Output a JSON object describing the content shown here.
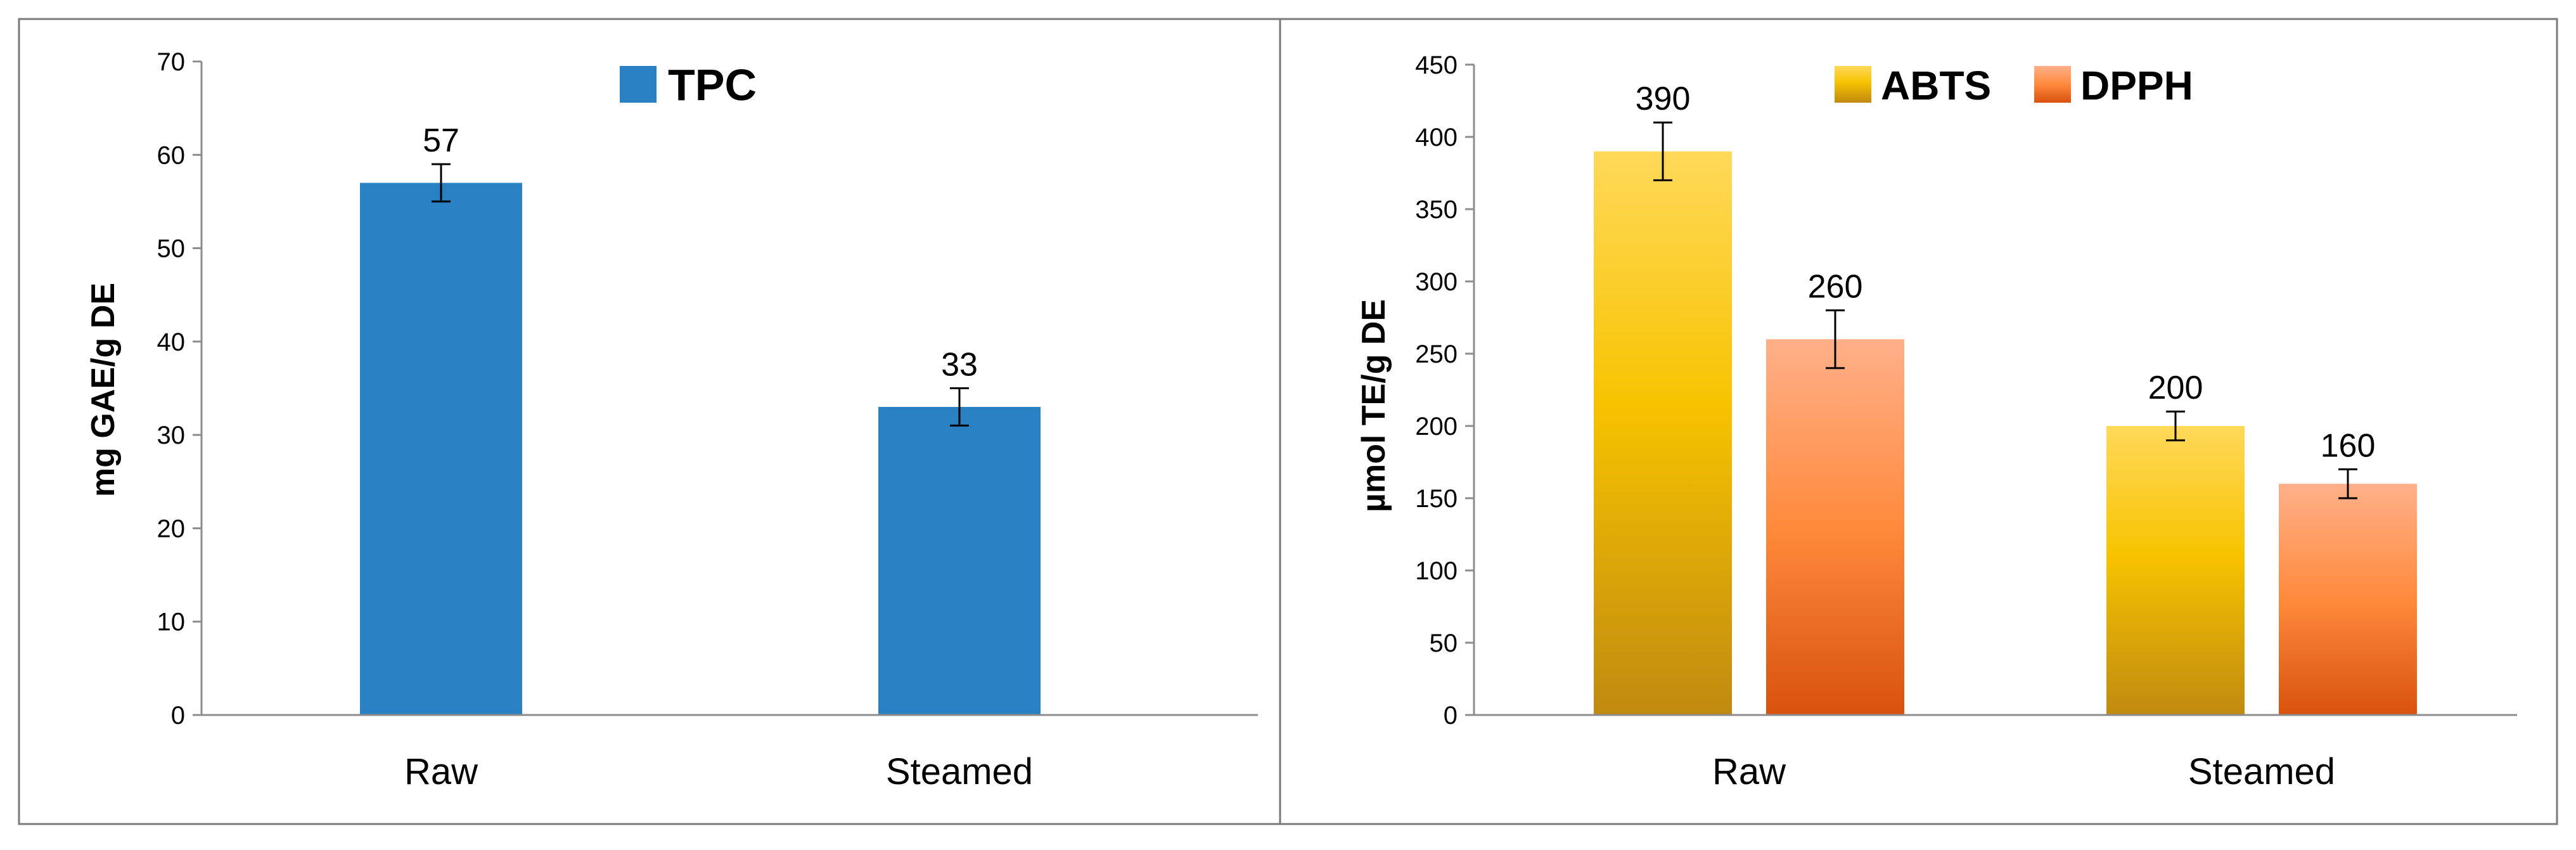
{
  "colors": {
    "tpc": "#2980c3",
    "abts_top": "#ffd95a",
    "abts_mid": "#f7c300",
    "abts_bottom": "#c08a10",
    "dpph_top": "#ffb08a",
    "dpph_mid": "#ff8a3c",
    "dpph_bottom": "#d8520e"
  },
  "chart_data": [
    {
      "type": "bar",
      "categories": [
        "Raw",
        "Steamed"
      ],
      "series": [
        {
          "name": "TPC",
          "values": [
            57,
            33
          ],
          "errors": [
            2,
            2
          ]
        }
      ],
      "data_labels": [
        "57",
        "33"
      ],
      "title": "",
      "xlabel": "",
      "ylabel": "mg GAE/g DE",
      "ylim": [
        0,
        70
      ],
      "yticks": [
        "0",
        "10",
        "20",
        "30",
        "40",
        "50",
        "60",
        "70"
      ],
      "grid": false,
      "legend_position": "top-right"
    },
    {
      "type": "bar",
      "categories": [
        "Raw",
        "Steamed"
      ],
      "series": [
        {
          "name": "ABTS",
          "values": [
            390,
            200
          ],
          "errors": [
            20,
            10
          ]
        },
        {
          "name": "DPPH",
          "values": [
            260,
            160
          ],
          "errors": [
            20,
            10
          ]
        }
      ],
      "data_labels": [
        [
          "390",
          "200"
        ],
        [
          "260",
          "160"
        ]
      ],
      "title": "",
      "xlabel": "",
      "ylabel": "µmol TE/g DE",
      "ylim": [
        0,
        450
      ],
      "yticks": [
        "0",
        "50",
        "100",
        "150",
        "200",
        "250",
        "300",
        "350",
        "400",
        "450"
      ],
      "grid": false,
      "legend_position": "top-right"
    }
  ]
}
